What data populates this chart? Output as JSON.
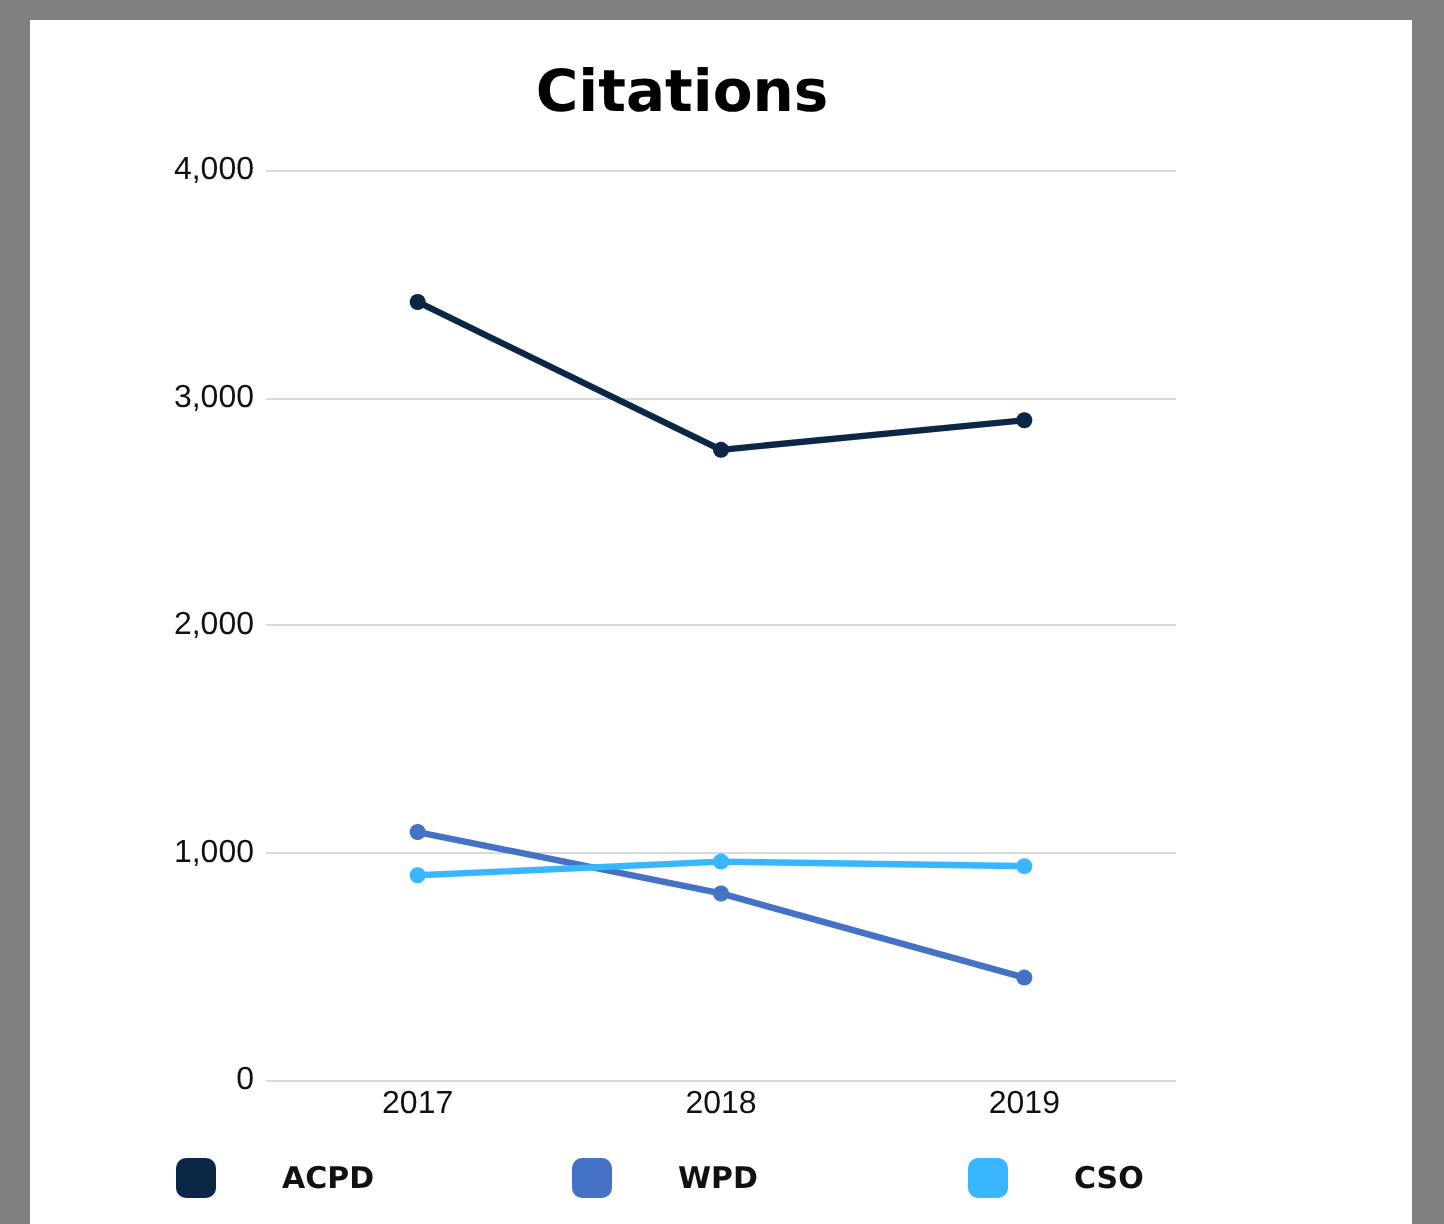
{
  "chart_data": {
    "type": "line",
    "title": "Citations",
    "categories": [
      "2017",
      "2018",
      "2019"
    ],
    "series": [
      {
        "name": "ACPD",
        "color": "#0c2746",
        "values": [
          3420,
          2770,
          2900
        ]
      },
      {
        "name": "WPD",
        "color": "#4472c4",
        "values": [
          1090,
          820,
          450
        ]
      },
      {
        "name": "CSO",
        "color": "#38b6ff",
        "values": [
          900,
          960,
          940
        ]
      }
    ],
    "ylim": [
      0,
      4000
    ],
    "yticks": [
      {
        "value": 0,
        "label": "0"
      },
      {
        "value": 1000,
        "label": "1,000"
      },
      {
        "value": 2000,
        "label": "2,000"
      },
      {
        "value": 3000,
        "label": "3,000"
      },
      {
        "value": 4000,
        "label": "4,000"
      }
    ],
    "grid": "y",
    "legend": "bottom",
    "marker": "circle",
    "line_style": "solid"
  }
}
